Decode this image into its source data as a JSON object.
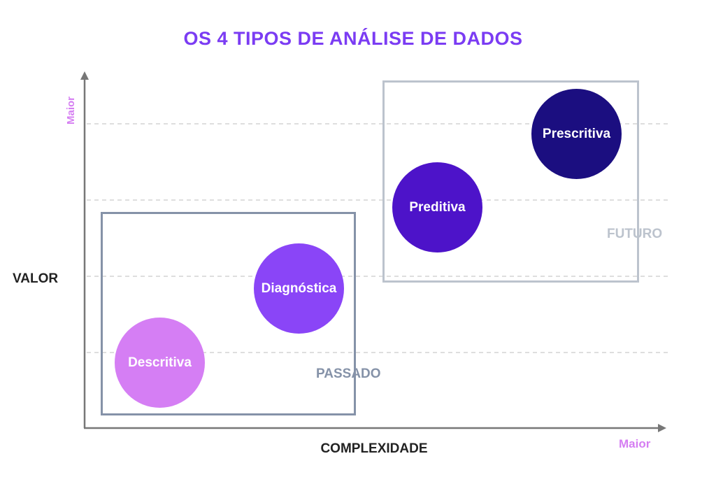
{
  "title": "OS 4 TIPOS DE ANÁLISE DE DADOS",
  "colors": {
    "title": "#7b3cf3",
    "axis": "#777777",
    "gridline": "#bdbdbd",
    "max_label": "#d57ef2",
    "past": "#8592a8",
    "future": "#bcc3cd",
    "descritiva": "#d57ef4",
    "diagnostica": "#8a45f7",
    "preditiva": "#4d13c9",
    "prescritiva": "#1b0e80"
  },
  "axes": {
    "y_label": "VALOR",
    "x_label": "COMPLEXIDADE",
    "y_max_label": "Maior",
    "x_max_label": "Maior"
  },
  "groups": {
    "past": "PASSADO",
    "future": "FUTURO"
  },
  "types": {
    "descritiva": "Descritiva",
    "diagnostica": "Diagnóstica",
    "preditiva": "Preditiva",
    "prescritiva": "Prescritiva"
  }
}
